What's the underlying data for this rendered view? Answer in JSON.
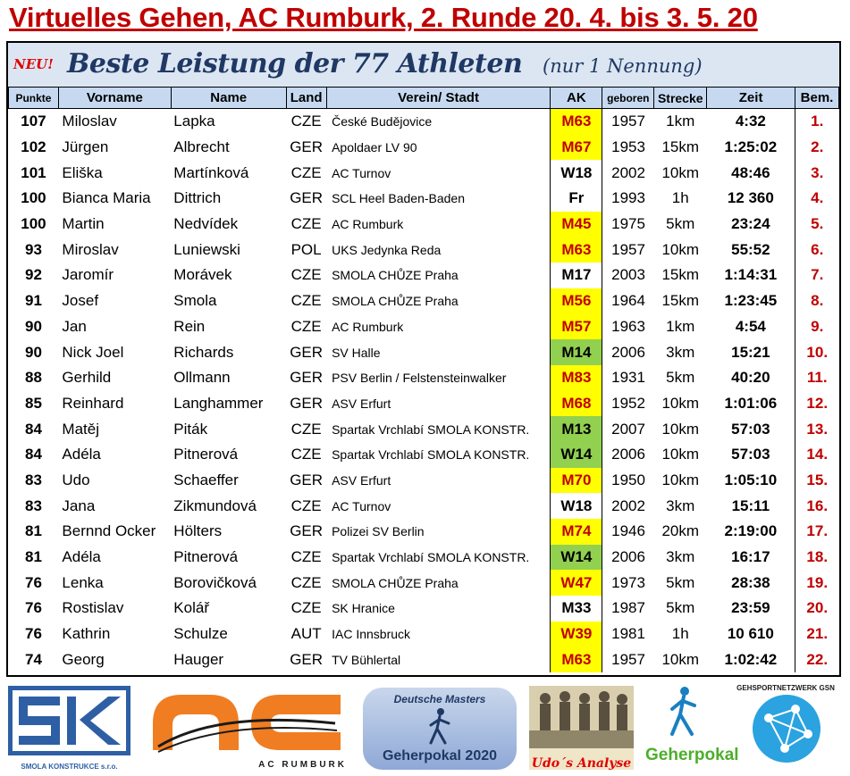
{
  "title": "Virtuelles Gehen, AC Rumburk, 2. Runde 20. 4. bis 3. 5. 20",
  "subheader": {
    "neu": "NEU!",
    "title": "Beste Leistung der 77 Athleten",
    "note": "(nur 1 Nennung)"
  },
  "columns": [
    "Punkte",
    "Vorname",
    "Name",
    "Land",
    "Verein/ Stadt",
    "AK",
    "geboren",
    "Strecke",
    "Zeit",
    "Bem."
  ],
  "rows": [
    {
      "punkte": "107",
      "vorname": "Miloslav",
      "name": "Lapka",
      "land": "CZE",
      "verein": "České Budějovice",
      "ak": "M63",
      "ak_bg": "yellow",
      "ak_color": "#c00000",
      "geboren": "1957",
      "strecke": "1km",
      "zeit": "4:32",
      "bem": "1."
    },
    {
      "punkte": "102",
      "vorname": "Jürgen",
      "name": "Albrecht",
      "land": "GER",
      "verein": "Apoldaer LV 90",
      "ak": "M67",
      "ak_bg": "yellow",
      "ak_color": "#c00000",
      "geboren": "1953",
      "strecke": "15km",
      "zeit": "1:25:02",
      "bem": "2."
    },
    {
      "punkte": "101",
      "vorname": "Eliška",
      "name": "Martínková",
      "land": "CZE",
      "verein": "AC Turnov",
      "ak": "W18",
      "ak_bg": "none",
      "ak_color": "#000000",
      "geboren": "2002",
      "strecke": "10km",
      "zeit": "48:46",
      "bem": "3."
    },
    {
      "punkte": "100",
      "vorname": "Bianca Maria",
      "name": "Dittrich",
      "land": "GER",
      "verein": "SCL Heel Baden-Baden",
      "ak": "Fr",
      "ak_bg": "none",
      "ak_color": "#000000",
      "geboren": "1993",
      "strecke": "1h",
      "zeit": "12 360",
      "bem": "4."
    },
    {
      "punkte": "100",
      "vorname": "Martin",
      "name": "Nedvídek",
      "land": "CZE",
      "verein": "AC Rumburk",
      "ak": "M45",
      "ak_bg": "yellow",
      "ak_color": "#c00000",
      "geboren": "1975",
      "strecke": "5km",
      "zeit": "23:24",
      "bem": "5."
    },
    {
      "punkte": "93",
      "vorname": "Miroslav",
      "name": "Luniewski",
      "land": "POL",
      "verein": "UKS Jedynka Reda",
      "ak": "M63",
      "ak_bg": "yellow",
      "ak_color": "#c00000",
      "geboren": "1957",
      "strecke": "10km",
      "zeit": "55:52",
      "bem": "6."
    },
    {
      "punkte": "92",
      "vorname": "Jaromír",
      "name": "Morávek",
      "land": "CZE",
      "verein": "SMOLA CHŮZE Praha",
      "ak": "M17",
      "ak_bg": "none",
      "ak_color": "#000000",
      "geboren": "2003",
      "strecke": "15km",
      "zeit": "1:14:31",
      "bem": "7."
    },
    {
      "punkte": "91",
      "vorname": "Josef",
      "name": "Smola",
      "land": "CZE",
      "verein": "SMOLA CHŮZE Praha",
      "ak": "M56",
      "ak_bg": "yellow",
      "ak_color": "#c00000",
      "geboren": "1964",
      "strecke": "15km",
      "zeit": "1:23:45",
      "bem": "8."
    },
    {
      "punkte": "90",
      "vorname": "Jan",
      "name": "Rein",
      "land": "CZE",
      "verein": "AC Rumburk",
      "ak": "M57",
      "ak_bg": "yellow",
      "ak_color": "#c00000",
      "geboren": "1963",
      "strecke": "1km",
      "zeit": "4:54",
      "bem": "9."
    },
    {
      "punkte": "90",
      "vorname": "Nick Joel",
      "name": "Richards",
      "land": "GER",
      "verein": "SV Halle",
      "ak": "M14",
      "ak_bg": "green",
      "ak_color": "#000000",
      "geboren": "2006",
      "strecke": "3km",
      "zeit": "15:21",
      "bem": "10."
    },
    {
      "punkte": "88",
      "vorname": "Gerhild",
      "name": "Ollmann",
      "land": "GER",
      "verein": "PSV Berlin / Felstensteinwalker",
      "ak": "M83",
      "ak_bg": "yellow",
      "ak_color": "#c00000",
      "geboren": "1931",
      "strecke": "5km",
      "zeit": "40:20",
      "bem": "11."
    },
    {
      "punkte": "85",
      "vorname": "Reinhard",
      "name": "Langhammer",
      "land": "GER",
      "verein": "ASV Erfurt",
      "ak": "M68",
      "ak_bg": "yellow",
      "ak_color": "#c00000",
      "geboren": "1952",
      "strecke": "10km",
      "zeit": "1:01:06",
      "bem": "12."
    },
    {
      "punkte": "84",
      "vorname": "Matěj",
      "name": "Piták",
      "land": "CZE",
      "verein": "Spartak Vrchlabí SMOLA KONSTR.",
      "ak": "M13",
      "ak_bg": "green",
      "ak_color": "#000000",
      "geboren": "2007",
      "strecke": "10km",
      "zeit": "57:03",
      "bem": "13."
    },
    {
      "punkte": "84",
      "vorname": "Adéla",
      "name": "Pitnerová",
      "land": "CZE",
      "verein": "Spartak Vrchlabí SMOLA KONSTR.",
      "ak": "W14",
      "ak_bg": "green",
      "ak_color": "#000000",
      "geboren": "2006",
      "strecke": "10km",
      "zeit": "57:03",
      "bem": "14."
    },
    {
      "punkte": "83",
      "vorname": "Udo",
      "name": "Schaeffer",
      "land": "GER",
      "verein": "ASV Erfurt",
      "ak": "M70",
      "ak_bg": "yellow",
      "ak_color": "#c00000",
      "geboren": "1950",
      "strecke": "10km",
      "zeit": "1:05:10",
      "bem": "15."
    },
    {
      "punkte": "83",
      "vorname": "Jana",
      "name": "Zikmundová",
      "land": "CZE",
      "verein": "AC Turnov",
      "ak": "W18",
      "ak_bg": "none",
      "ak_color": "#000000",
      "geboren": "2002",
      "strecke": "3km",
      "zeit": "15:11",
      "bem": "16."
    },
    {
      "punkte": "81",
      "vorname": "Bernnd Ocker",
      "name": "Hölters",
      "land": "GER",
      "verein": "Polizei SV Berlin",
      "ak": "M74",
      "ak_bg": "yellow",
      "ak_color": "#c00000",
      "geboren": "1946",
      "strecke": "20km",
      "zeit": "2:19:00",
      "bem": "17."
    },
    {
      "punkte": "81",
      "vorname": "Adéla",
      "name": "Pitnerová",
      "land": "CZE",
      "verein": "Spartak Vrchlabí SMOLA KONSTR.",
      "ak": "W14",
      "ak_bg": "green",
      "ak_color": "#000000",
      "geboren": "2006",
      "strecke": "3km",
      "zeit": "16:17",
      "bem": "18."
    },
    {
      "punkte": "76",
      "vorname": "Lenka",
      "name": "Borovičková",
      "land": "CZE",
      "verein": "SMOLA CHŮZE Praha",
      "ak": "W47",
      "ak_bg": "yellow",
      "ak_color": "#c00000",
      "geboren": "1973",
      "strecke": "5km",
      "zeit": "28:38",
      "bem": "19."
    },
    {
      "punkte": "76",
      "vorname": "Rostislav",
      "name": "Kolář",
      "land": "CZE",
      "verein": "SK Hranice",
      "ak": "M33",
      "ak_bg": "none",
      "ak_color": "#000000",
      "geboren": "1987",
      "strecke": "5km",
      "zeit": "23:59",
      "bem": "20."
    },
    {
      "punkte": "76",
      "vorname": "Kathrin",
      "name": "Schulze",
      "land": "AUT",
      "verein": "IAC Innsbruck",
      "ak": "W39",
      "ak_bg": "yellow",
      "ak_color": "#c00000",
      "geboren": "1981",
      "strecke": "1h",
      "zeit": "10 610",
      "bem": "21."
    },
    {
      "punkte": "74",
      "vorname": "Georg",
      "name": "Hauger",
      "land": "GER",
      "verein": "TV Bühlertal",
      "ak": "M63",
      "ak_bg": "yellow",
      "ak_color": "#c00000",
      "geboren": "1957",
      "strecke": "10km",
      "zeit": "1:02:42",
      "bem": "22."
    }
  ],
  "colors": {
    "yellow": "#ffff00",
    "green": "#92d050",
    "title_red": "#c00000",
    "header_bg": "#c6d9f1",
    "subheader_bg": "#dce6f2",
    "navy": "#1f3864",
    "orange": "#f07d22",
    "sk_blue": "#2e5fa5"
  },
  "logos": {
    "sk": {
      "caption": "SMOLA KONSTRUKCE s.r.o.",
      "icon": "sk-logo"
    },
    "ac": {
      "caption": "AC RUMBURK",
      "icon": "ac-logo"
    },
    "masters": {
      "arc": "Deutsche Masters",
      "caption": "Geherpokal 2020",
      "icon": "walker-icon"
    },
    "udo": {
      "caption": "Udo´s Analyse",
      "icon": "photo-walkers"
    },
    "geherpokal": {
      "caption": "Geherpokal",
      "icon": "walker-icon"
    },
    "gsn": {
      "arc": "GEHSPORTNETZWERK GSN",
      "icon": "network-globe"
    }
  }
}
